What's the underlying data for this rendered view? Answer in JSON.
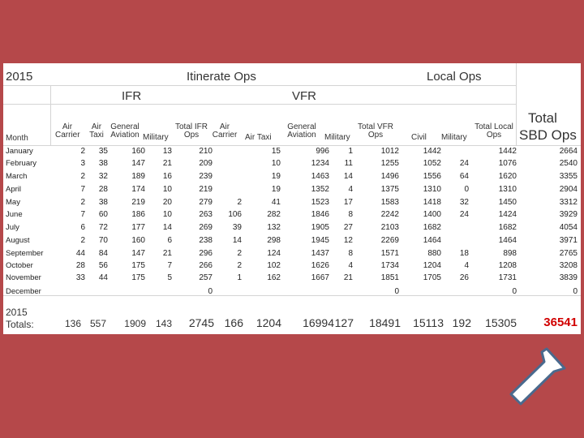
{
  "header": {
    "year": "2015",
    "itinerate": "Itinerate Ops",
    "local": "Local Ops",
    "ifr": "IFR",
    "vfr": "VFR",
    "total_label": "Total",
    "sbd_label": "SBD Ops"
  },
  "columns": {
    "month": "Month",
    "ifr_air_carrier": [
      "Air",
      "Carrier"
    ],
    "ifr_air_taxi": [
      "Air",
      "Taxi"
    ],
    "ifr_ga": [
      "General",
      "Aviation"
    ],
    "ifr_military": "Military",
    "ifr_total": [
      "Total IFR",
      "Ops"
    ],
    "vfr_air_carrier": [
      "Air",
      "Carrier"
    ],
    "vfr_air_taxi": "Air Taxi",
    "vfr_ga": [
      "General",
      "Aviation"
    ],
    "vfr_military": "Military",
    "vfr_total": [
      "Total VFR",
      "Ops"
    ],
    "local_civil": "Civil",
    "local_military": "Military",
    "local_total": [
      "Total Local",
      "Ops"
    ]
  },
  "rows": [
    {
      "month": "January",
      "v": [
        "2",
        "35",
        "160",
        "13",
        "210",
        "",
        "15",
        "996",
        "1",
        "1012",
        "1442",
        "",
        "1442",
        "2664"
      ]
    },
    {
      "month": "February",
      "v": [
        "3",
        "38",
        "147",
        "21",
        "209",
        "",
        "10",
        "1234",
        "11",
        "1255",
        "1052",
        "24",
        "1076",
        "2540"
      ]
    },
    {
      "month": "March",
      "v": [
        "2",
        "32",
        "189",
        "16",
        "239",
        "",
        "19",
        "1463",
        "14",
        "1496",
        "1556",
        "64",
        "1620",
        "3355"
      ]
    },
    {
      "month": "April",
      "v": [
        "7",
        "28",
        "174",
        "10",
        "219",
        "",
        "19",
        "1352",
        "4",
        "1375",
        "1310",
        "0",
        "1310",
        "2904"
      ]
    },
    {
      "month": "May",
      "v": [
        "2",
        "38",
        "219",
        "20",
        "279",
        "2",
        "41",
        "1523",
        "17",
        "1583",
        "1418",
        "32",
        "1450",
        "3312"
      ]
    },
    {
      "month": "June",
      "v": [
        "7",
        "60",
        "186",
        "10",
        "263",
        "106",
        "282",
        "1846",
        "8",
        "2242",
        "1400",
        "24",
        "1424",
        "3929"
      ]
    },
    {
      "month": "July",
      "v": [
        "6",
        "72",
        "177",
        "14",
        "269",
        "39",
        "132",
        "1905",
        "27",
        "2103",
        "1682",
        "",
        "1682",
        "4054"
      ]
    },
    {
      "month": "August",
      "v": [
        "2",
        "70",
        "160",
        "6",
        "238",
        "14",
        "298",
        "1945",
        "12",
        "2269",
        "1464",
        "",
        "1464",
        "3971"
      ]
    },
    {
      "month": "September",
      "v": [
        "44",
        "84",
        "147",
        "21",
        "296",
        "2",
        "124",
        "1437",
        "8",
        "1571",
        "880",
        "18",
        "898",
        "2765"
      ]
    },
    {
      "month": "October",
      "v": [
        "28",
        "56",
        "175",
        "7",
        "266",
        "2",
        "102",
        "1626",
        "4",
        "1734",
        "1204",
        "4",
        "1208",
        "3208"
      ]
    },
    {
      "month": "November",
      "v": [
        "33",
        "44",
        "175",
        "5",
        "257",
        "1",
        "162",
        "1667",
        "21",
        "1851",
        "1705",
        "26",
        "1731",
        "3839"
      ]
    },
    {
      "month": "December",
      "v": [
        "",
        "",
        "",
        "",
        "0",
        "",
        "",
        "",
        "",
        "0",
        "",
        "",
        "0",
        "0"
      ]
    }
  ],
  "totals": {
    "label": [
      "2015",
      "Totals:"
    ],
    "v": [
      "136",
      "557",
      "1909",
      "143",
      "2745",
      "166",
      "1204",
      "16994",
      "127",
      "18491",
      "15113",
      "192",
      "15305",
      "36541"
    ]
  },
  "colors": {
    "background": "#b5484a",
    "grand_total": "#d10000",
    "arrow_fill": "#ffffff",
    "arrow_stroke": "#4a6a8e"
  },
  "icons": {
    "pointer": "arrow-up-right-icon"
  }
}
